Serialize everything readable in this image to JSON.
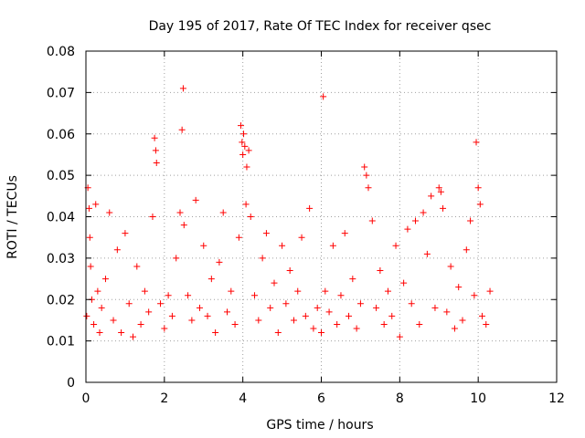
{
  "chart_data": {
    "type": "scatter",
    "title": "Day 195 of 2017, Rate Of TEC Index for receiver qsec",
    "xlabel": "GPS time / hours",
    "ylabel": "ROTI / TECUs",
    "xlim": [
      0,
      12
    ],
    "ylim": [
      0,
      0.08
    ],
    "xticks": [
      0,
      2,
      4,
      6,
      8,
      10,
      12
    ],
    "xtick_labels": [
      "0",
      "2",
      "4",
      "6",
      "8",
      "10",
      "12"
    ],
    "yticks": [
      0,
      0.01,
      0.02,
      0.03,
      0.04,
      0.05,
      0.06,
      0.07,
      0.08
    ],
    "ytick_labels": [
      "0",
      "0.01",
      "0.02",
      "0.03",
      "0.04",
      "0.05",
      "0.06",
      "0.07",
      "0.08"
    ],
    "grid": true,
    "marker": "+",
    "color": "#ff0000",
    "series": [
      {
        "name": "ROTI",
        "note": "dense cloud of points from 0 to ~10.3 h, mostly 0.005-0.025 TECU/s; representative sample plus notable peaks",
        "x": [
          0.02,
          0.05,
          0.08,
          0.1,
          0.12,
          0.15,
          0.2,
          0.25,
          0.3,
          0.35,
          0.4,
          0.5,
          0.6,
          0.7,
          0.8,
          0.9,
          1.0,
          1.1,
          1.2,
          1.3,
          1.4,
          1.5,
          1.6,
          1.7,
          1.75,
          1.78,
          1.8,
          1.9,
          2.0,
          2.1,
          2.2,
          2.3,
          2.4,
          2.45,
          2.48,
          2.5,
          2.6,
          2.7,
          2.8,
          2.9,
          3.0,
          3.1,
          3.2,
          3.3,
          3.4,
          3.5,
          3.6,
          3.7,
          3.8,
          3.9,
          3.95,
          3.98,
          4.0,
          4.02,
          4.05,
          4.08,
          4.1,
          4.15,
          4.2,
          4.3,
          4.4,
          4.5,
          4.6,
          4.7,
          4.8,
          4.9,
          5.0,
          5.1,
          5.2,
          5.3,
          5.4,
          5.5,
          5.6,
          5.7,
          5.8,
          5.9,
          6.0,
          6.05,
          6.1,
          6.2,
          6.3,
          6.4,
          6.5,
          6.6,
          6.7,
          6.8,
          6.9,
          7.0,
          7.1,
          7.15,
          7.2,
          7.3,
          7.4,
          7.5,
          7.6,
          7.7,
          7.8,
          7.9,
          8.0,
          8.1,
          8.2,
          8.3,
          8.4,
          8.5,
          8.6,
          8.7,
          8.8,
          8.9,
          9.0,
          9.05,
          9.1,
          9.2,
          9.3,
          9.4,
          9.5,
          9.6,
          9.7,
          9.8,
          9.9,
          9.95,
          10.0,
          10.05,
          10.1,
          10.2,
          10.3
        ],
        "y": [
          0.016,
          0.047,
          0.042,
          0.035,
          0.028,
          0.02,
          0.014,
          0.043,
          0.022,
          0.012,
          0.018,
          0.025,
          0.041,
          0.015,
          0.032,
          0.012,
          0.036,
          0.019,
          0.011,
          0.028,
          0.014,
          0.022,
          0.017,
          0.04,
          0.059,
          0.056,
          0.053,
          0.019,
          0.013,
          0.021,
          0.016,
          0.03,
          0.041,
          0.061,
          0.071,
          0.038,
          0.021,
          0.015,
          0.044,
          0.018,
          0.033,
          0.016,
          0.025,
          0.012,
          0.029,
          0.041,
          0.017,
          0.022,
          0.014,
          0.035,
          0.062,
          0.058,
          0.055,
          0.06,
          0.057,
          0.043,
          0.052,
          0.056,
          0.04,
          0.021,
          0.015,
          0.03,
          0.036,
          0.018,
          0.024,
          0.012,
          0.033,
          0.019,
          0.027,
          0.015,
          0.022,
          0.035,
          0.016,
          0.042,
          0.013,
          0.018,
          0.012,
          0.069,
          0.022,
          0.017,
          0.033,
          0.014,
          0.021,
          0.036,
          0.016,
          0.025,
          0.013,
          0.019,
          0.052,
          0.05,
          0.047,
          0.039,
          0.018,
          0.027,
          0.014,
          0.022,
          0.016,
          0.033,
          0.011,
          0.024,
          0.037,
          0.019,
          0.039,
          0.014,
          0.041,
          0.031,
          0.045,
          0.018,
          0.047,
          0.046,
          0.042,
          0.017,
          0.028,
          0.013,
          0.023,
          0.015,
          0.032,
          0.039,
          0.021,
          0.058,
          0.047,
          0.043,
          0.016,
          0.014,
          0.022
        ]
      }
    ]
  }
}
